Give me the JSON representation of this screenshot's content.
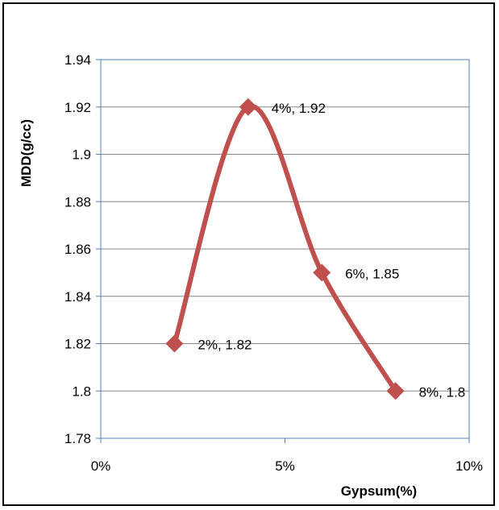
{
  "chart_data": {
    "type": "line",
    "smooth": true,
    "x": [
      2,
      4,
      6,
      8
    ],
    "y": [
      1.82,
      1.92,
      1.85,
      1.8
    ],
    "xlabel": "Gypsum(%)",
    "ylabel": "MDD(g/cc)",
    "xlim": [
      0,
      10
    ],
    "ylim": [
      1.78,
      1.94
    ],
    "x_ticks": [
      0,
      5,
      10
    ],
    "x_tick_labels": [
      "0%",
      "5%",
      "10%"
    ],
    "y_ticks": [
      1.78,
      1.8,
      1.82,
      1.84,
      1.86,
      1.88,
      1.9,
      1.92,
      1.94
    ],
    "y_tick_labels": [
      "1.78",
      "1.8",
      "1.82",
      "1.84",
      "1.86",
      "1.88",
      "1.9",
      "1.92",
      "1.94"
    ],
    "data_labels": [
      "2%, 1.82",
      "4%, 1.92",
      "6%, 1.85",
      "8%, 1.8"
    ],
    "grid": "horizontal",
    "legend": "none",
    "marker": "diamond",
    "colors": {
      "series": "#C0504D",
      "plot_border": "#4F81BD",
      "grid": "#868686"
    }
  }
}
